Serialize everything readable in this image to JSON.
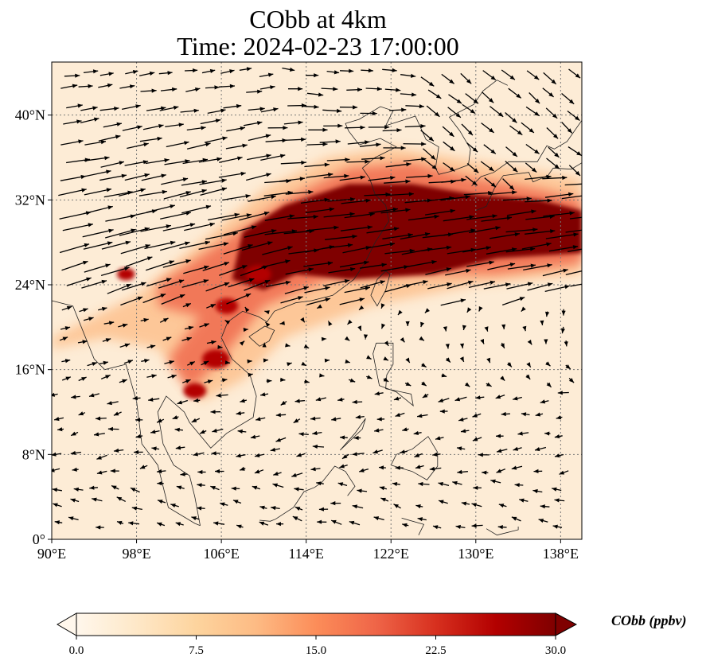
{
  "map": {
    "title_line1": "CObb at 4km",
    "title_line2": "Time: 2024-02-23 17:00:00",
    "variable": "CObb",
    "units": "ppbv",
    "region": {
      "lon_min": 90,
      "lon_max": 140,
      "lat_min": 0,
      "lat_max": 45
    },
    "grid": true,
    "lat_ticks": [
      "0°",
      "8°N",
      "16°N",
      "24°N",
      "32°N",
      "40°N"
    ],
    "lon_ticks": [
      "90°E",
      "98°E",
      "106°E",
      "114°E",
      "122°E",
      "130°E",
      "138°E"
    ],
    "lat_values": [
      0,
      8,
      16,
      24,
      32,
      40
    ],
    "lon_values": [
      90,
      98,
      106,
      114,
      122,
      130,
      138
    ],
    "overlay": "wind vectors (black arrows)",
    "colormap": "OrRd",
    "plume_axis": {
      "description": "heavy CObb plume along ~28-32°N from 108°E to 140°E"
    }
  },
  "colorbar": {
    "label": "CObb (ppbv)",
    "ticks": [
      "0.0",
      "7.5",
      "15.0",
      "22.5",
      "30.0"
    ],
    "tick_values": [
      0,
      7.5,
      15,
      22.5,
      30
    ],
    "min": 0,
    "max": 30,
    "extend": "both",
    "colors": [
      "#fff7ec",
      "#fee8c8",
      "#fdd49e",
      "#fdbb84",
      "#fc8d59",
      "#ef6548",
      "#d7301f",
      "#b30000",
      "#7f0000"
    ]
  }
}
